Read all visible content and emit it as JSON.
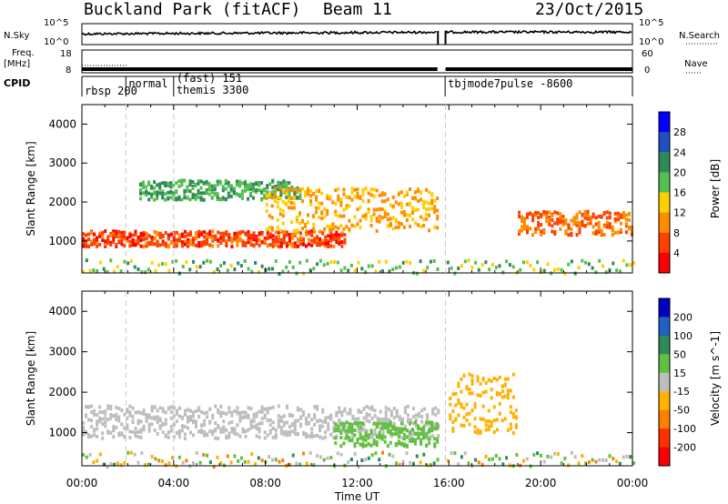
{
  "header": {
    "title": "Buckland Park (fitACF)",
    "beam": "Beam 11",
    "date": "23/Oct/2015"
  },
  "strip_labels": {
    "nsky": "N.Sky",
    "nsearch": "N.Search",
    "freq_top": "Freq.",
    "freq_unit": "[MHz]",
    "nave": "Nave",
    "cpid": "CPID",
    "nsky_ticks": [
      "10^5",
      "10^0"
    ],
    "freq_ticks": [
      "18",
      "8"
    ],
    "nave_ticks": [
      "60",
      "0"
    ]
  },
  "cpid_segments": [
    {
      "label": "rbsp 200",
      "start": "00:00"
    },
    {
      "label": "normal",
      "start": "01:55"
    },
    {
      "label": "(fast) 151",
      "start": "04:00"
    },
    {
      "label": "themis 3300",
      "start": "04:00"
    },
    {
      "label": "tbjmode7pulse -8600",
      "start": "15:50"
    }
  ],
  "chart_data": [
    {
      "type": "heatmap",
      "quantity": "Power",
      "ylabel": "Slant Range [km]",
      "xlabel": "Time UT",
      "ylim": [
        180,
        4500
      ],
      "yticks": [
        1000,
        2000,
        3000,
        4000
      ],
      "xticks": [
        "00:00",
        "04:00",
        "08:00",
        "12:00",
        "16:00",
        "20:00",
        "00:00"
      ],
      "colorbar": {
        "label": "Power [dB]",
        "range": [
          0,
          32
        ],
        "ticks": [
          4,
          8,
          12,
          16,
          20,
          24,
          28
        ],
        "colors": [
          "#0000ff",
          "#2050c0",
          "#2e8b57",
          "#55c050",
          "#ffd000",
          "#ff8c00",
          "#ff4000",
          "#ff0000"
        ]
      },
      "features": [
        {
          "name": "main band",
          "time_start": "00:00",
          "time_end": "11:30",
          "range_km": "900-1300",
          "power_db": 26
        },
        {
          "name": "upper band",
          "time_start": "02:30",
          "time_end": "09:30",
          "range_km": "2100-2600",
          "power_db": 12
        },
        {
          "name": "rising band",
          "time_start": "08:00",
          "time_end": "15:30",
          "range_km": "1300-2400",
          "power_db": 20
        },
        {
          "name": "late band",
          "time_start": "19:00",
          "time_end": "24:00",
          "range_km": "1200-1800",
          "power_db": 24
        }
      ]
    },
    {
      "type": "heatmap",
      "quantity": "Velocity",
      "ylabel": "Slant Range [km]",
      "xlabel": "Time UT",
      "ylim": [
        180,
        4500
      ],
      "yticks": [
        1000,
        2000,
        3000,
        4000
      ],
      "xticks": [
        "00:00",
        "04:00",
        "08:00",
        "12:00",
        "16:00",
        "20:00",
        "00:00"
      ],
      "colorbar": {
        "label": "Velocity [m s^-1]",
        "range": [
          -250,
          250
        ],
        "ticks": [
          200,
          100,
          50,
          15,
          -15,
          -50,
          -100,
          -200
        ],
        "colors": [
          "#0000c0",
          "#2060c0",
          "#2e8b57",
          "#60c040",
          "#bebebe",
          "#ffb000",
          "#ff8000",
          "#ff3000",
          "#ff0000"
        ]
      },
      "features": [
        {
          "name": "ground scatter",
          "time_start": "00:00",
          "time_end": "15:30",
          "range_km": "900-1700",
          "velocity_ms": 0
        },
        {
          "name": "positive flow",
          "time_start": "11:00",
          "time_end": "15:30",
          "range_km": "700-1300",
          "velocity_ms": 50
        },
        {
          "name": "negative flow",
          "time_start": "16:00",
          "time_end": "19:00",
          "range_km": "1000-2500",
          "velocity_ms": -50
        }
      ]
    }
  ],
  "x_axis_label": "Time UT",
  "x_tick_labels": [
    "00:00",
    "04:00",
    "08:00",
    "12:00",
    "16:00",
    "20:00",
    "00:00"
  ]
}
